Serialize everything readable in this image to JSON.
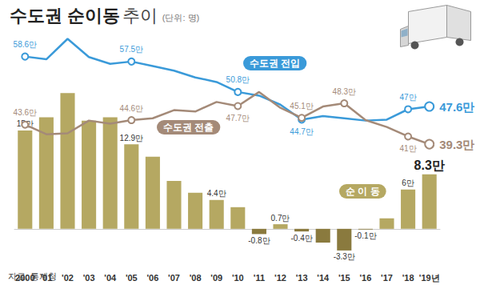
{
  "chart_data": {
    "type": "bar",
    "title": "수도권 순이동 추이",
    "subtitle": "(단위: 명)",
    "source": "자료: 통계청",
    "categories": [
      "2000",
      "'01",
      "'02",
      "'03",
      "'04",
      "'05",
      "'06",
      "'07",
      "'08",
      "'09",
      "'10",
      "'11",
      "'12",
      "'13",
      "'14",
      "'15",
      "'16",
      "'17",
      "'18",
      "'19년"
    ],
    "ylim": [
      -6,
      30
    ],
    "y2lim": [
      12,
      64
    ],
    "grid": false,
    "tick_labels": "x",
    "data_labels": true,
    "series": [
      {
        "name": "순 이 동",
        "type": "bar",
        "values": [
          15,
          17.0,
          20.7,
          16.5,
          17.0,
          12.9,
          11.0,
          7.3,
          5.5,
          4.4,
          3.3,
          -0.8,
          0.7,
          -0.4,
          -2.1,
          -3.3,
          -0.1,
          1.6,
          6,
          8.3
        ],
        "value_labels": [
          "15만",
          null,
          null,
          null,
          null,
          "12.9만",
          null,
          null,
          null,
          "4.4만",
          null,
          "-0.8만",
          "0.7만",
          "-0.4만",
          null,
          "-3.3만",
          "-0.1만",
          null,
          "6만",
          "8.3만"
        ],
        "colors": [
          "#b5a862",
          "#b5a862",
          "#b5a862",
          "#b5a862",
          "#b5a862",
          "#b5a862",
          "#b5a862",
          "#b5a862",
          "#b5a862",
          "#b5a862",
          "#b5a862",
          "#8a7a3e",
          "#b5a862",
          "#8a7a3e",
          "#8a7a3e",
          "#8a7a3e",
          "#8a7a3e",
          "#b5a862",
          "#b5a862",
          "#b5a862"
        ]
      },
      {
        "name": "수도권 전입",
        "type": "line",
        "axis": "y2",
        "color": "#3a9ad9",
        "marker": "circle",
        "values": [
          58.6,
          58.0,
          62.5,
          58.5,
          57.0,
          57.5,
          56.5,
          55.5,
          54.0,
          53.0,
          50.8,
          50.0,
          48.0,
          44.7,
          45.5,
          45.0,
          44.5,
          44.7,
          47,
          47.6
        ],
        "value_labels": [
          "58.6만",
          null,
          null,
          null,
          null,
          "57.5만",
          null,
          null,
          null,
          null,
          "50.8만",
          null,
          null,
          "44.7만",
          null,
          null,
          null,
          null,
          "47만",
          "47.6만"
        ]
      },
      {
        "name": "수도권 전출",
        "type": "line",
        "axis": "y2",
        "color": "#a48a78",
        "marker": "circle",
        "values": [
          43.6,
          41.5,
          41.7,
          44.5,
          43.8,
          44.6,
          45.0,
          46.8,
          46.5,
          48.6,
          47.7,
          50.8,
          47.3,
          45.1,
          47.6,
          48.3,
          44.6,
          43.1,
          41,
          39.3
        ],
        "value_labels": [
          "43.6만",
          null,
          null,
          null,
          null,
          "44.6만",
          null,
          null,
          null,
          null,
          "47.7만",
          null,
          null,
          "45.1만",
          null,
          "48.3만",
          null,
          null,
          "41만",
          "39.3만"
        ]
      }
    ]
  }
}
